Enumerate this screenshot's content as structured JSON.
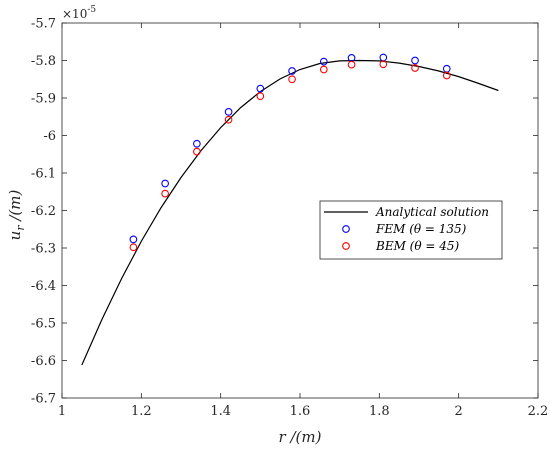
{
  "chart_data": {
    "type": "scatter",
    "title": "",
    "xlabel": "r /(m)",
    "ylabel": "u_r /(m)",
    "y_multiplier": "×10^-5",
    "xlim": [
      1,
      2.2
    ],
    "ylim": [
      -6.7,
      -5.7
    ],
    "x_ticks": [
      "1",
      "1.2",
      "1.4",
      "1.6",
      "1.8",
      "2",
      "2.2"
    ],
    "y_ticks": [
      "-5.7",
      "-5.8",
      "-5.9",
      "-6",
      "-6.1",
      "-6.2",
      "-6.3",
      "-6.4",
      "-6.5",
      "-6.6",
      "-6.7"
    ],
    "grid": false,
    "legend_position": "center-right",
    "series": [
      {
        "name": "Analytical solution",
        "kind": "line",
        "color": "#000000",
        "x": [
          1.05,
          1.1,
          1.15,
          1.2,
          1.25,
          1.3,
          1.35,
          1.4,
          1.45,
          1.5,
          1.55,
          1.6,
          1.65,
          1.7,
          1.75,
          1.8,
          1.85,
          1.9,
          1.95,
          2.0,
          2.05,
          2.1
        ],
        "y": [
          -6.612,
          -6.492,
          -6.382,
          -6.282,
          -6.192,
          -6.112,
          -6.041,
          -5.979,
          -5.926,
          -5.883,
          -5.849,
          -5.824,
          -5.808,
          -5.801,
          -5.8,
          -5.801,
          -5.807,
          -5.816,
          -5.828,
          -5.843,
          -5.861,
          -5.88
        ]
      },
      {
        "name": "FEM (θ = 135)",
        "kind": "marker",
        "color": "#0000ff",
        "x": [
          1.18,
          1.26,
          1.34,
          1.42,
          1.5,
          1.58,
          1.66,
          1.73,
          1.81,
          1.89,
          1.97
        ],
        "y": [
          -6.277,
          -6.128,
          -6.022,
          -5.937,
          -5.875,
          -5.828,
          -5.803,
          -5.793,
          -5.792,
          -5.8,
          -5.822
        ]
      },
      {
        "name": "BEM (θ = 45)",
        "kind": "marker",
        "color": "#ff0000",
        "x": [
          1.18,
          1.26,
          1.34,
          1.42,
          1.5,
          1.58,
          1.66,
          1.73,
          1.81,
          1.89,
          1.97
        ],
        "y": [
          -6.298,
          -6.155,
          -6.043,
          -5.958,
          -5.895,
          -5.85,
          -5.824,
          -5.811,
          -5.81,
          -5.82,
          -5.84
        ]
      }
    ]
  }
}
